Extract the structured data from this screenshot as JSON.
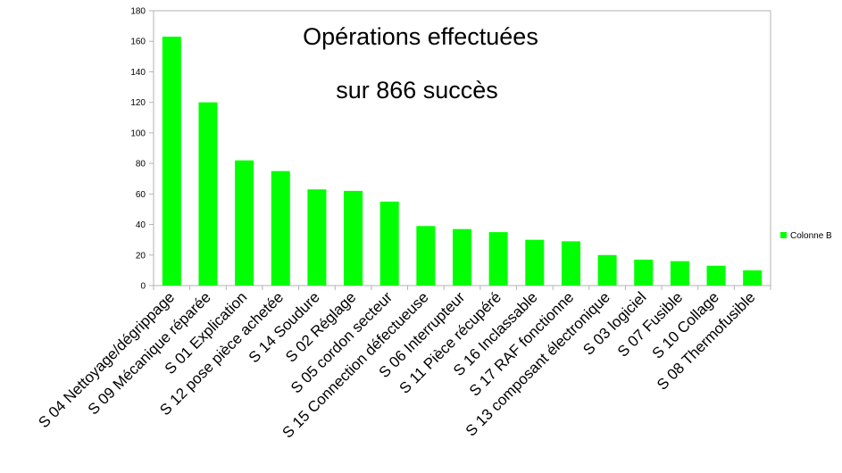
{
  "chart_data": {
    "type": "bar",
    "title": "Opérations effectuées",
    "subtitle": "sur 866  succès",
    "xlabel": "",
    "ylabel": "",
    "ylim": [
      0,
      180
    ],
    "yticks": [
      0,
      20,
      40,
      60,
      80,
      100,
      120,
      140,
      160,
      180
    ],
    "grid": false,
    "legend_position": "right",
    "color": "#00ff00",
    "categories": [
      "S 04 Nettoyage/dégrippage",
      "S 09 Mécanique réparée",
      "S 01 Explication",
      "S 12 pose pièce achetée",
      "S 14 Soudure",
      "S 02 Réglage",
      "S 05 cordon secteur",
      "S 15 Connection défectueuse",
      "S 06 Interrupteur",
      "S 11 Pièce récupéré",
      "S 16 Inclassable",
      "S 17 RAF fonctionne",
      "S 13 composant électronique",
      "S 03 logiciel",
      "S 07 Fusible",
      "S 10 Collage",
      "S 08 Thermofusible"
    ],
    "series": [
      {
        "name": "Colonne B",
        "values": [
          163,
          120,
          82,
          75,
          63,
          62,
          55,
          39,
          37,
          35,
          30,
          29,
          20,
          17,
          16,
          13,
          10
        ]
      }
    ]
  }
}
